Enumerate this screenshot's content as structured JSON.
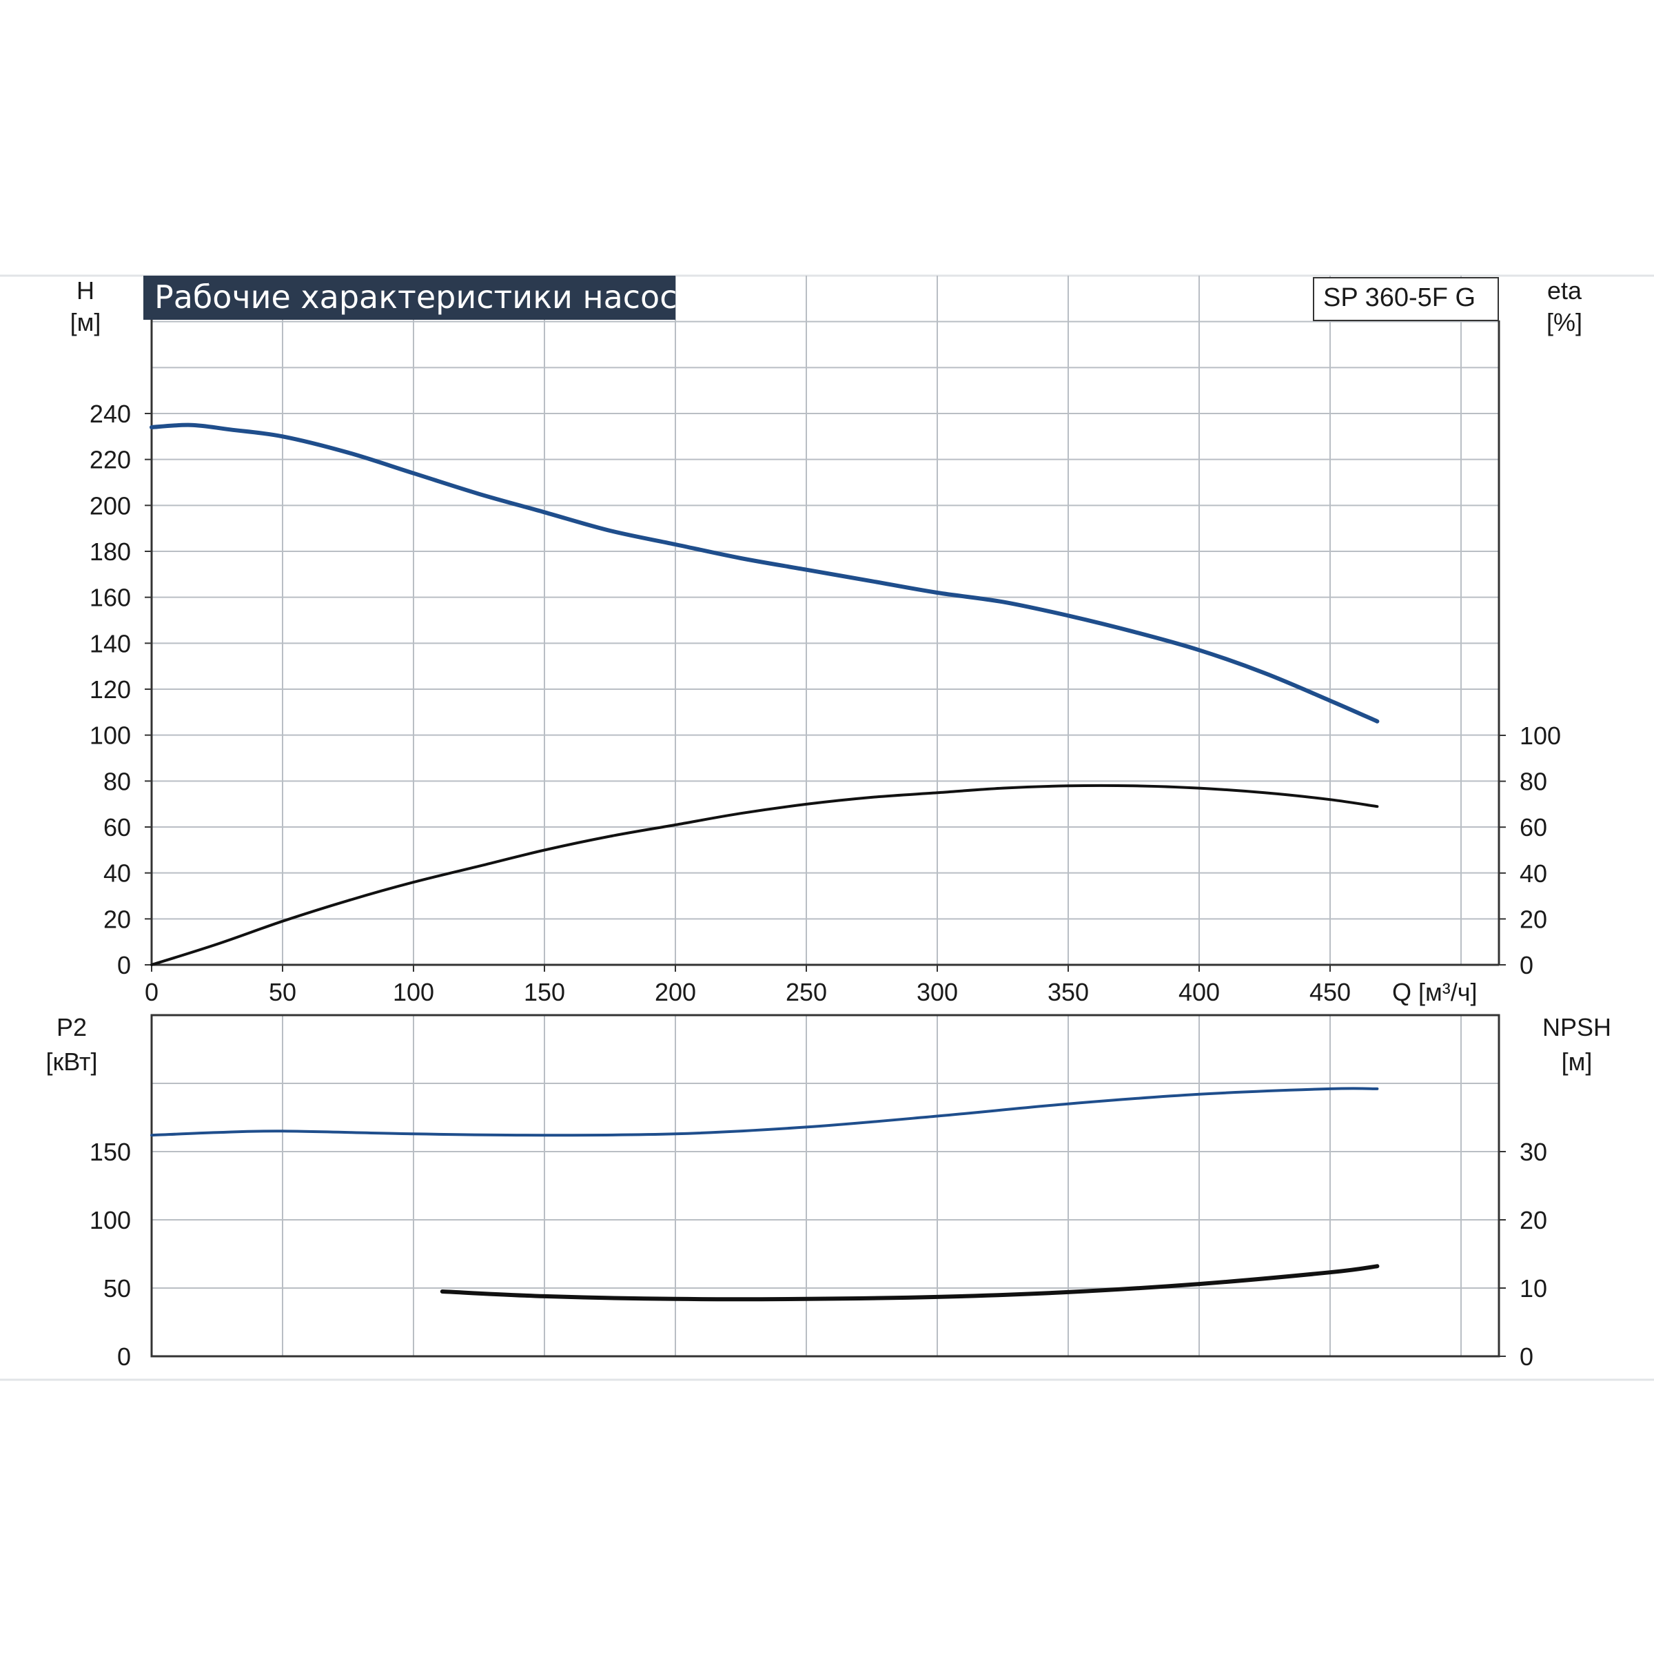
{
  "title": "Рабочие характеристики насоса",
  "model": "SP 360-5F G",
  "colors": {
    "head_curve": "#1f4e8c",
    "efficiency_curve": "#111111",
    "power_curve": "#1f4e8c",
    "npsh_curve": "#111111",
    "grid": "#b9bec4",
    "title_bg": "#2b3a4f"
  },
  "chart_data": [
    {
      "type": "line",
      "name": "upper",
      "left_axis": {
        "label_line1": "H",
        "label_line2": "[м]",
        "ylim": [
          0,
          240
        ],
        "ticks": [
          0,
          20,
          40,
          60,
          80,
          100,
          120,
          140,
          160,
          180,
          200,
          220,
          240
        ]
      },
      "right_axis": {
        "label_line1": "eta",
        "label_line2": "[%]",
        "ticks": [
          0,
          20,
          40,
          60,
          80,
          100
        ]
      },
      "x_axis": {
        "label": "Q [м³/ч]",
        "xlim": [
          0,
          500
        ],
        "ticks": [
          0,
          50,
          100,
          150,
          200,
          250,
          300,
          350,
          400,
          450
        ]
      },
      "grid": true,
      "series": [
        {
          "key": "H",
          "axis": "left",
          "x": [
            0,
            15,
            30,
            50,
            75,
            100,
            125,
            150,
            175,
            200,
            225,
            250,
            275,
            300,
            325,
            350,
            375,
            400,
            425,
            450,
            468
          ],
          "y": [
            234,
            235,
            233,
            230,
            223,
            214,
            205,
            197,
            189,
            183,
            177,
            172,
            167,
            162,
            158,
            152,
            145,
            137,
            127,
            115,
            106
          ]
        },
        {
          "key": "eta",
          "axis": "right",
          "x": [
            0,
            25,
            50,
            75,
            100,
            125,
            150,
            175,
            200,
            225,
            250,
            275,
            300,
            325,
            350,
            375,
            400,
            425,
            450,
            468
          ],
          "y": [
            0,
            9,
            19,
            28,
            36,
            43,
            50,
            56,
            61,
            66,
            70,
            73,
            75,
            77,
            78,
            78,
            77,
            75,
            72,
            69
          ]
        }
      ]
    },
    {
      "type": "line",
      "name": "lower",
      "left_axis": {
        "label_line1": "P2",
        "label_line2": "[кВт]",
        "ylim": [
          0,
          200
        ],
        "ticks": [
          0,
          50,
          100,
          150
        ]
      },
      "right_axis": {
        "label_line1": "NPSH",
        "label_line2": "[м]",
        "ylim": [
          0,
          40
        ],
        "ticks": [
          0,
          10,
          20,
          30
        ]
      },
      "x_axis": {
        "xlim": [
          0,
          500
        ]
      },
      "grid": true,
      "series": [
        {
          "key": "P2",
          "axis": "left",
          "x": [
            0,
            25,
            50,
            100,
            150,
            200,
            250,
            300,
            350,
            400,
            450,
            468
          ],
          "y": [
            162,
            164,
            165,
            163,
            162,
            163,
            168,
            176,
            185,
            192,
            196,
            196
          ]
        },
        {
          "key": "NPSH",
          "axis": "right",
          "x": [
            111,
            150,
            200,
            250,
            300,
            350,
            400,
            450,
            468
          ],
          "y": [
            9.5,
            8.8,
            8.4,
            8.4,
            8.7,
            9.4,
            10.6,
            12.3,
            13.2
          ]
        }
      ]
    }
  ]
}
